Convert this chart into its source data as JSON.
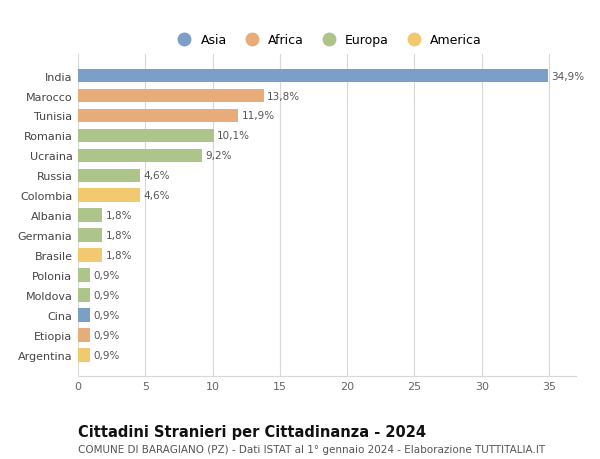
{
  "countries": [
    "India",
    "Marocco",
    "Tunisia",
    "Romania",
    "Ucraina",
    "Russia",
    "Colombia",
    "Albania",
    "Germania",
    "Brasile",
    "Polonia",
    "Moldova",
    "Cina",
    "Etiopia",
    "Argentina"
  ],
  "values": [
    34.9,
    13.8,
    11.9,
    10.1,
    9.2,
    4.6,
    4.6,
    1.8,
    1.8,
    1.8,
    0.9,
    0.9,
    0.9,
    0.9,
    0.9
  ],
  "labels": [
    "34,9%",
    "13,8%",
    "11,9%",
    "10,1%",
    "9,2%",
    "4,6%",
    "4,6%",
    "1,8%",
    "1,8%",
    "1,8%",
    "0,9%",
    "0,9%",
    "0,9%",
    "0,9%",
    "0,9%"
  ],
  "continents": [
    "Asia",
    "Africa",
    "Africa",
    "Europa",
    "Europa",
    "Europa",
    "America",
    "Europa",
    "Europa",
    "America",
    "Europa",
    "Europa",
    "Asia",
    "Africa",
    "America"
  ],
  "continent_colors": {
    "Asia": "#7b9fc7",
    "Africa": "#e8ab7a",
    "Europa": "#adc48a",
    "America": "#f2c96e"
  },
  "legend_order": [
    "Asia",
    "Africa",
    "Europa",
    "America"
  ],
  "title": "Cittadini Stranieri per Cittadinanza - 2024",
  "subtitle": "COMUNE DI BARAGIANO (PZ) - Dati ISTAT al 1° gennaio 2024 - Elaborazione TUTTITALIA.IT",
  "xlim": [
    0,
    37
  ],
  "xticks": [
    0,
    5,
    10,
    15,
    20,
    25,
    30,
    35
  ],
  "background_color": "#ffffff",
  "grid_color": "#d8d8d8",
  "bar_height": 0.68,
  "title_fontsize": 10.5,
  "subtitle_fontsize": 7.5,
  "tick_fontsize": 8,
  "label_fontsize": 7.5,
  "legend_fontsize": 9
}
